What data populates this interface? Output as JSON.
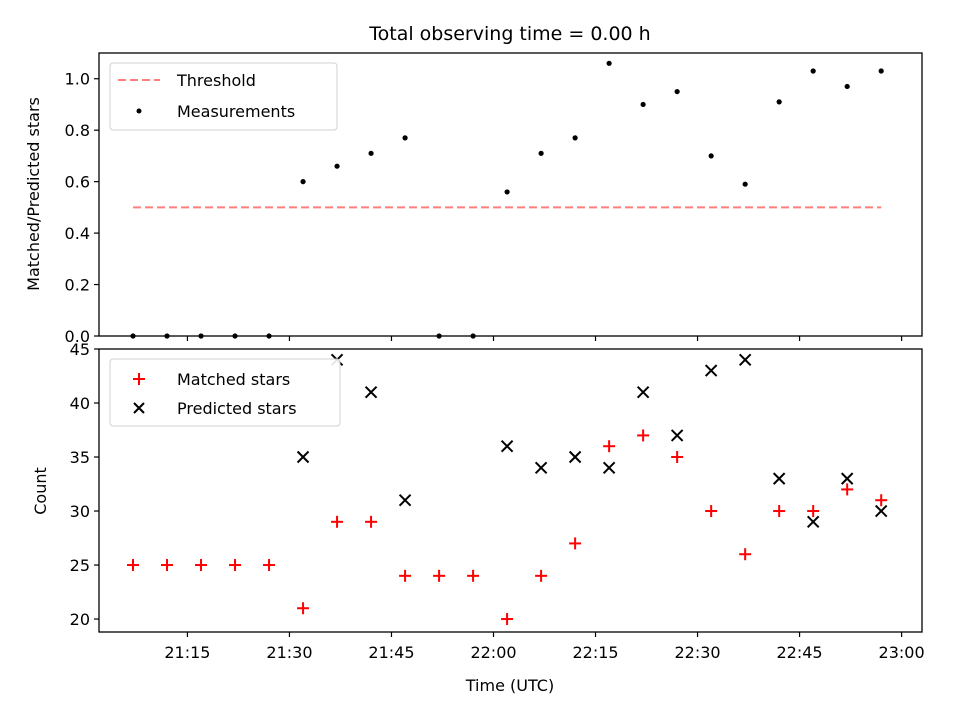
{
  "chart_data": [
    {
      "type": "scatter",
      "title": "Total observing time = 0.00 h",
      "xlabel": "",
      "ylabel": "Matched/Predicted stars",
      "ylim": [
        0,
        1.1
      ],
      "xlim": [
        "21:02",
        "23:03"
      ],
      "yticks": [
        "0.0",
        "0.2",
        "0.4",
        "0.6",
        "0.8",
        "1.0"
      ],
      "legend_position": "upper-left",
      "threshold": {
        "name": "Threshold",
        "value": 0.5,
        "x_start": "21:07",
        "x_end": "22:57",
        "color": "#ff7f7f",
        "style": "dashed"
      },
      "series": [
        {
          "name": "Measurements",
          "color": "#000000",
          "marker": "dot",
          "x": [
            "21:07",
            "21:12",
            "21:17",
            "21:22",
            "21:27",
            "21:32",
            "21:37",
            "21:42",
            "21:47",
            "21:52",
            "21:57",
            "22:02",
            "22:07",
            "22:12",
            "22:17",
            "22:22",
            "22:27",
            "22:32",
            "22:37",
            "22:42",
            "22:47",
            "22:52",
            "22:57"
          ],
          "y": [
            0,
            0,
            0,
            0,
            0,
            0.6,
            0.66,
            0.71,
            0.77,
            0,
            0,
            0.56,
            0.71,
            0.77,
            1.06,
            0.9,
            0.95,
            0.7,
            0.59,
            0.91,
            1.03,
            0.97,
            1.03
          ]
        }
      ]
    },
    {
      "type": "scatter",
      "title": "",
      "xlabel": "Time (UTC)",
      "ylabel": "Count",
      "ylim": [
        18.8,
        45
      ],
      "xlim": [
        "21:02",
        "23:03"
      ],
      "yticks": [
        "20",
        "25",
        "30",
        "35",
        "40",
        "45"
      ],
      "xticks": [
        "21:15",
        "21:30",
        "21:45",
        "22:00",
        "22:15",
        "22:30",
        "22:45",
        "23:00"
      ],
      "legend_position": "upper-left",
      "series": [
        {
          "name": "Matched stars",
          "color": "#ff0000",
          "marker": "plus",
          "x": [
            "21:07",
            "21:12",
            "21:17",
            "21:22",
            "21:27",
            "21:32",
            "21:37",
            "21:42",
            "21:47",
            "21:52",
            "21:57",
            "22:02",
            "22:07",
            "22:12",
            "22:17",
            "22:22",
            "22:27",
            "22:32",
            "22:37",
            "22:42",
            "22:47",
            "22:52",
            "22:57"
          ],
          "y": [
            25,
            25,
            25,
            25,
            25,
            21,
            29,
            29,
            24,
            24,
            24,
            20,
            24,
            27,
            36,
            37,
            35,
            30,
            26,
            30,
            30,
            32,
            31
          ]
        },
        {
          "name": "Predicted stars",
          "color": "#000000",
          "marker": "x",
          "x": [
            "21:32",
            "21:37",
            "21:42",
            "21:47",
            "22:02",
            "22:07",
            "22:12",
            "22:17",
            "22:22",
            "22:27",
            "22:32",
            "22:37",
            "22:42",
            "22:47",
            "22:52",
            "22:57"
          ],
          "y": [
            35,
            44,
            41,
            31,
            36,
            34,
            35,
            34,
            41,
            37,
            43,
            44,
            33,
            29,
            33,
            30
          ]
        }
      ]
    }
  ]
}
